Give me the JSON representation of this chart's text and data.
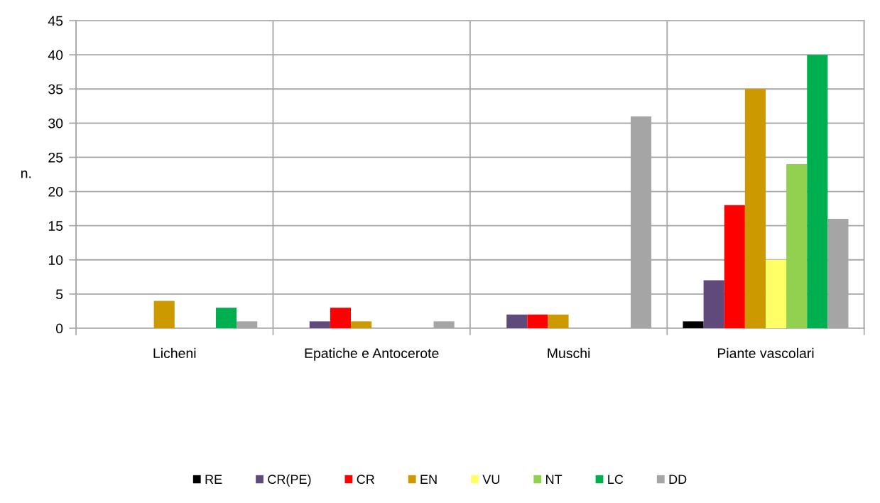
{
  "chart_data": {
    "type": "bar",
    "ylabel": "n.",
    "categories": [
      "Licheni",
      "Epatiche e Antocerote",
      "Muschi",
      "Piante vascolari"
    ],
    "series": [
      {
        "name": "RE",
        "color": "#000000",
        "values": [
          0,
          0,
          0,
          1
        ]
      },
      {
        "name": "CR(PE)",
        "color": "#604a7b",
        "values": [
          0,
          1,
          2,
          7
        ]
      },
      {
        "name": "CR",
        "color": "#ff0000",
        "values": [
          0,
          3,
          2,
          18
        ]
      },
      {
        "name": "EN",
        "color": "#cc9900",
        "values": [
          4,
          1,
          2,
          35
        ]
      },
      {
        "name": "VU",
        "color": "#ffff66",
        "values": [
          0,
          0,
          0,
          10
        ]
      },
      {
        "name": "NT",
        "color": "#92d050",
        "values": [
          0,
          0,
          0,
          24
        ]
      },
      {
        "name": "LC",
        "color": "#00b050",
        "values": [
          3,
          0,
          0,
          40
        ]
      },
      {
        "name": "DD",
        "color": "#a5a5a5",
        "values": [
          1,
          1,
          31,
          16
        ]
      }
    ],
    "ylim": [
      0,
      45
    ],
    "yticks": [
      0,
      5,
      10,
      15,
      20,
      25,
      30,
      35,
      40,
      45
    ],
    "grid": true,
    "legend": "bottom"
  }
}
